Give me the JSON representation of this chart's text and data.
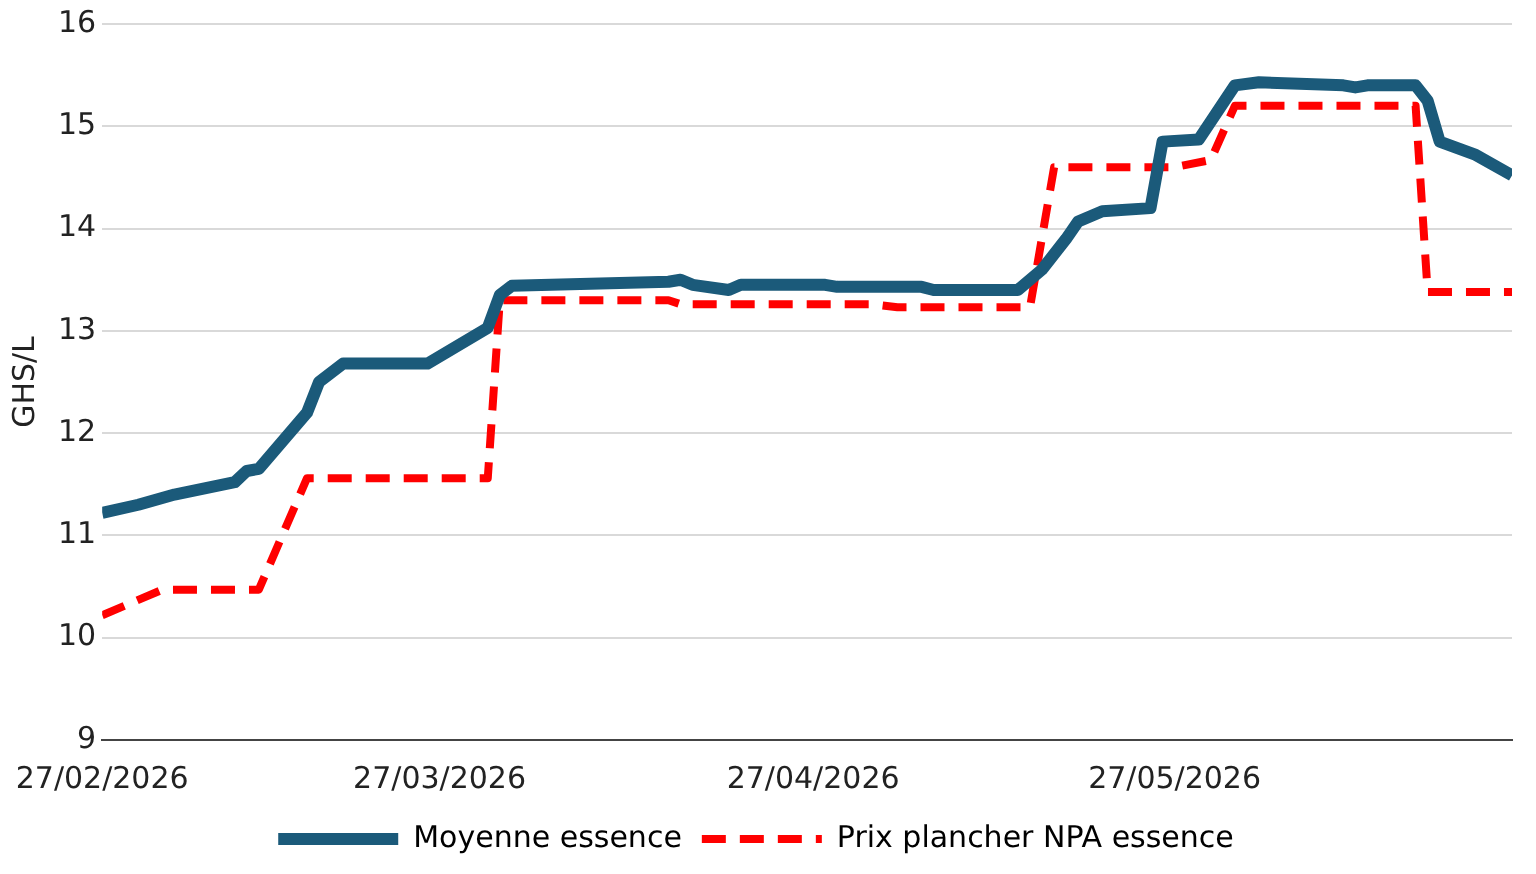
{
  "chart_data": {
    "type": "line",
    "ylabel": "GHS/L",
    "xlim": [
      "2026-02-27",
      "2026-06-24"
    ],
    "xticks": [
      {
        "value": "2026-02-27",
        "label": "27/02/2026"
      },
      {
        "value": "2026-03-27",
        "label": "27/03/2026"
      },
      {
        "value": "2026-04-27",
        "label": "27/04/2026"
      },
      {
        "value": "2026-05-27",
        "label": "27/05/2026"
      }
    ],
    "ylim": [
      9,
      16
    ],
    "yticks": [
      9,
      10,
      11,
      12,
      13,
      14,
      15,
      16
    ],
    "grid": "y",
    "legend": "bottom",
    "marker": "none",
    "series": [
      {
        "name": "Moyenne essence",
        "color": "#1b5a7a",
        "line_style": "solid",
        "x": [
          "2026-02-27",
          "2026-03-02",
          "2026-03-05",
          "2026-03-10",
          "2026-03-11",
          "2026-03-12",
          "2026-03-16",
          "2026-03-17",
          "2026-03-19",
          "2026-03-26",
          "2026-03-31",
          "2026-04-01",
          "2026-04-02",
          "2026-04-15",
          "2026-04-16",
          "2026-04-17",
          "2026-04-20",
          "2026-04-21",
          "2026-04-28",
          "2026-04-29",
          "2026-05-06",
          "2026-05-07",
          "2026-05-14",
          "2026-05-16",
          "2026-05-18",
          "2026-05-19",
          "2026-05-21",
          "2026-05-25",
          "2026-05-26",
          "2026-05-29",
          "2026-06-01",
          "2026-06-03",
          "2026-06-10",
          "2026-06-11",
          "2026-06-12",
          "2026-06-16",
          "2026-06-17",
          "2026-06-18",
          "2026-06-21",
          "2026-06-24"
        ],
        "values": [
          11.22,
          11.3,
          11.4,
          11.52,
          11.63,
          11.65,
          12.2,
          12.5,
          12.68,
          12.68,
          13.03,
          13.35,
          13.44,
          13.48,
          13.5,
          13.45,
          13.4,
          13.45,
          13.45,
          13.43,
          13.43,
          13.4,
          13.4,
          13.6,
          13.9,
          14.07,
          14.17,
          14.2,
          14.85,
          14.87,
          15.4,
          15.43,
          15.4,
          15.38,
          15.4,
          15.4,
          15.25,
          14.85,
          14.72,
          14.52
        ]
      },
      {
        "name": "Prix plancher NPA essence",
        "color": "#ff0000",
        "line_style": "dashed",
        "x": [
          "2026-02-27",
          "2026-03-04",
          "2026-03-12",
          "2026-03-16",
          "2026-03-31",
          "2026-04-01",
          "2026-04-15",
          "2026-04-16",
          "2026-05-02",
          "2026-05-04",
          "2026-05-15",
          "2026-05-17",
          "2026-05-27",
          "2026-05-30",
          "2026-06-01",
          "2026-06-16",
          "2026-06-17",
          "2026-06-24"
        ],
        "values": [
          10.22,
          10.47,
          10.47,
          11.56,
          11.56,
          13.3,
          13.3,
          13.26,
          13.26,
          13.23,
          13.23,
          14.6,
          14.6,
          14.67,
          15.2,
          15.2,
          13.38,
          13.38
        ]
      }
    ]
  }
}
